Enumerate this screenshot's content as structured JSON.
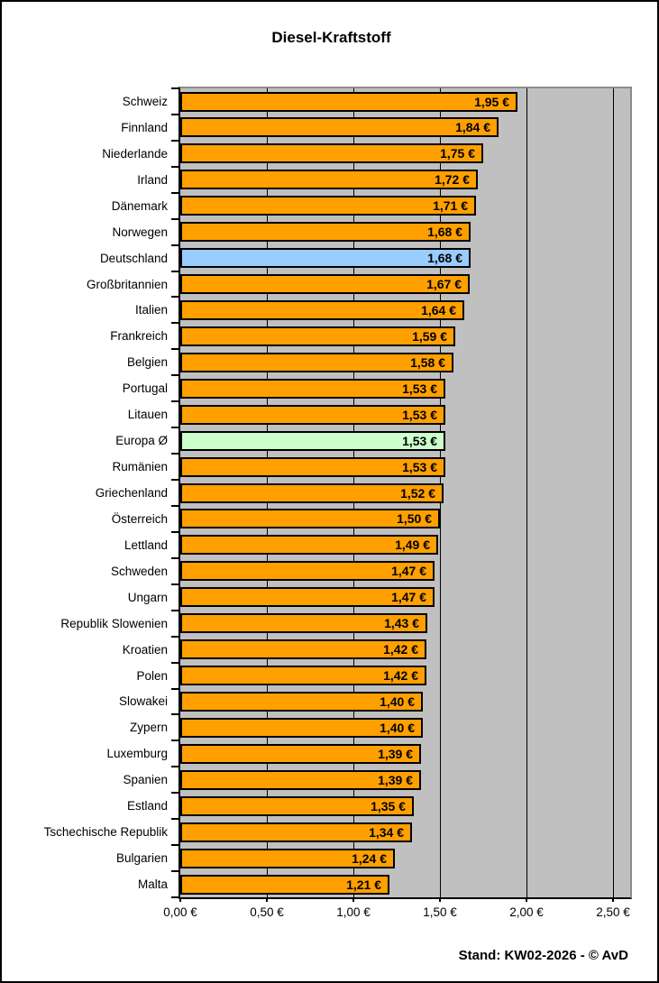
{
  "page": {
    "title": "Diesel-Kraftstoff",
    "footer": "Stand: KW02-2026 - © AvD"
  },
  "chart_data": {
    "type": "bar",
    "orientation": "horizontal",
    "title": "Diesel-Kraftstoff",
    "xlabel": "",
    "ylabel": "",
    "unit": "€/Liter",
    "xlim": [
      0,
      2.6
    ],
    "grid": "vertical",
    "categories": [
      "Schweiz",
      "Finnland",
      "Niederlande",
      "Irland",
      "Dänemark",
      "Norwegen",
      "Deutschland",
      "Großbritannien",
      "Italien",
      "Frankreich",
      "Belgien",
      "Portugal",
      "Litauen",
      "Europa Ø",
      "Rumänien",
      "Griechenland",
      "Österreich",
      "Lettland",
      "Schweden",
      "Ungarn",
      "Republik Slowenien",
      "Kroatien",
      "Polen",
      "Slowakei",
      "Zypern",
      "Luxemburg",
      "Spanien",
      "Estland",
      "Tschechische Republik",
      "Bulgarien",
      "Malta"
    ],
    "values": [
      1.95,
      1.84,
      1.75,
      1.72,
      1.71,
      1.68,
      1.68,
      1.67,
      1.64,
      1.59,
      1.58,
      1.53,
      1.53,
      1.53,
      1.53,
      1.52,
      1.5,
      1.49,
      1.47,
      1.47,
      1.43,
      1.42,
      1.42,
      1.4,
      1.4,
      1.39,
      1.39,
      1.35,
      1.34,
      1.24,
      1.21
    ],
    "value_labels": [
      "1,95 €",
      "1,84 €",
      "1,75 €",
      "1,72 €",
      "1,71 €",
      "1,68 €",
      "1,68 €",
      "1,67 €",
      "1,64 €",
      "1,59 €",
      "1,58 €",
      "1,53 €",
      "1,53 €",
      "1,53 €",
      "1,53 €",
      "1,52 €",
      "1,50 €",
      "1,49 €",
      "1,47 €",
      "1,47 €",
      "1,43 €",
      "1,42 €",
      "1,42 €",
      "1,40 €",
      "1,40 €",
      "1,39 €",
      "1,39 €",
      "1,35 €",
      "1,34 €",
      "1,24 €",
      "1,21 €"
    ],
    "x_tick_values": [
      0,
      0.5,
      1.0,
      1.5,
      2.0,
      2.5
    ],
    "x_tick_labels": [
      "0,00 €",
      "0,50 €",
      "1,00 €",
      "1,50 €",
      "2,00 €",
      "2,50 €"
    ],
    "colors": {
      "bar_default": "#FFA000",
      "bar_border": "#000000",
      "plot_background": "#C0C0C0",
      "plot_frame": "#8C8C8C",
      "gridline": "#000000"
    },
    "highlights": {
      "Deutschland": "#99CCFF",
      "Europa Ø": "#CCFFCC"
    },
    "legend": null
  }
}
